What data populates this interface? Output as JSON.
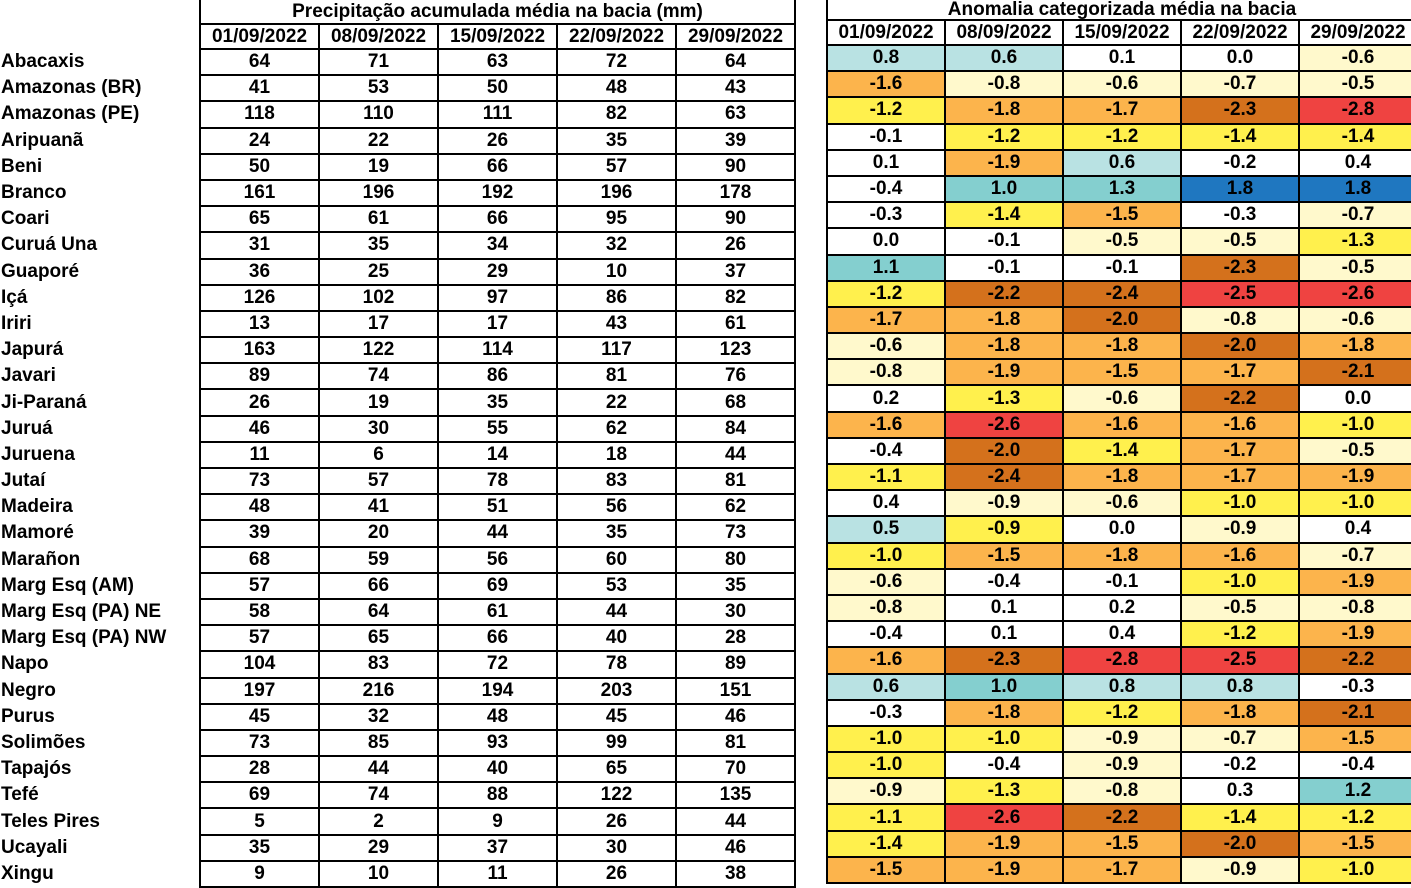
{
  "precipitation": {
    "title": "Precipitação acumulada média na bacia (mm)",
    "dates": [
      "01/09/2022",
      "08/09/2022",
      "15/09/2022",
      "22/09/2022",
      "29/09/2022"
    ]
  },
  "anomaly": {
    "title": "Anomalia categorizada média na bacia",
    "dates": [
      "01/09/2022",
      "08/09/2022",
      "15/09/2022",
      "22/09/2022",
      "29/09/2022"
    ]
  },
  "colors": {
    "B1": "#b9e2e3",
    "B2": "#84cfcf",
    "B3": "#1f77c0",
    "W": "#ffffff",
    "Y0": "#fff9cc",
    "Y1": "#fff04d",
    "O1": "#fcb44c",
    "O2": "#d4711c",
    "R": "#ef4341"
  },
  "rows": [
    {
      "name": "Abacaxis",
      "precip": [
        "64",
        "71",
        "63",
        "72",
        "64"
      ],
      "anom": [
        "0.8",
        "0.6",
        "0.1",
        "0.0",
        "-0.6"
      ],
      "cat": [
        "B1",
        "B1",
        "W",
        "W",
        "Y0"
      ]
    },
    {
      "name": "Amazonas (BR)",
      "precip": [
        "41",
        "53",
        "50",
        "48",
        "43"
      ],
      "anom": [
        "-1.6",
        "-0.8",
        "-0.6",
        "-0.7",
        "-0.5"
      ],
      "cat": [
        "O1",
        "Y0",
        "Y0",
        "Y0",
        "Y0"
      ]
    },
    {
      "name": "Amazonas (PE)",
      "precip": [
        "118",
        "110",
        "111",
        "82",
        "63"
      ],
      "anom": [
        "-1.2",
        "-1.8",
        "-1.7",
        "-2.3",
        "-2.8"
      ],
      "cat": [
        "Y1",
        "O1",
        "O1",
        "O2",
        "R"
      ]
    },
    {
      "name": "Aripuanã",
      "precip": [
        "24",
        "22",
        "26",
        "35",
        "39"
      ],
      "anom": [
        "-0.1",
        "-1.2",
        "-1.2",
        "-1.4",
        "-1.4"
      ],
      "cat": [
        "W",
        "Y1",
        "Y1",
        "Y1",
        "Y1"
      ]
    },
    {
      "name": "Beni",
      "precip": [
        "50",
        "19",
        "66",
        "57",
        "90"
      ],
      "anom": [
        "0.1",
        "-1.9",
        "0.6",
        "-0.2",
        "0.4"
      ],
      "cat": [
        "W",
        "O1",
        "B1",
        "W",
        "W"
      ]
    },
    {
      "name": "Branco",
      "precip": [
        "161",
        "196",
        "192",
        "196",
        "178"
      ],
      "anom": [
        "-0.4",
        "1.0",
        "1.3",
        "1.8",
        "1.8"
      ],
      "cat": [
        "W",
        "B2",
        "B2",
        "B3",
        "B3"
      ]
    },
    {
      "name": "Coari",
      "precip": [
        "65",
        "61",
        "66",
        "95",
        "90"
      ],
      "anom": [
        "-0.3",
        "-1.4",
        "-1.5",
        "-0.3",
        "-0.7"
      ],
      "cat": [
        "W",
        "Y1",
        "O1",
        "W",
        "Y0"
      ]
    },
    {
      "name": "Curuá Una",
      "precip": [
        "31",
        "35",
        "34",
        "32",
        "26"
      ],
      "anom": [
        "0.0",
        "-0.1",
        "-0.5",
        "-0.5",
        "-1.3"
      ],
      "cat": [
        "W",
        "W",
        "Y0",
        "Y0",
        "Y1"
      ]
    },
    {
      "name": "Guaporé",
      "precip": [
        "36",
        "25",
        "29",
        "10",
        "37"
      ],
      "anom": [
        "1.1",
        "-0.1",
        "-0.1",
        "-2.3",
        "-0.5"
      ],
      "cat": [
        "B2",
        "W",
        "W",
        "O2",
        "Y0"
      ]
    },
    {
      "name": "Içá",
      "precip": [
        "126",
        "102",
        "97",
        "86",
        "82"
      ],
      "anom": [
        "-1.2",
        "-2.2",
        "-2.4",
        "-2.5",
        "-2.6"
      ],
      "cat": [
        "Y1",
        "O2",
        "O2",
        "R",
        "R"
      ]
    },
    {
      "name": "Iriri",
      "precip": [
        "13",
        "17",
        "17",
        "43",
        "61"
      ],
      "anom": [
        "-1.7",
        "-1.8",
        "-2.0",
        "-0.8",
        "-0.6"
      ],
      "cat": [
        "O1",
        "O1",
        "O2",
        "Y0",
        "Y0"
      ]
    },
    {
      "name": "Japurá",
      "precip": [
        "163",
        "122",
        "114",
        "117",
        "123"
      ],
      "anom": [
        "-0.6",
        "-1.8",
        "-1.8",
        "-2.0",
        "-1.8"
      ],
      "cat": [
        "Y0",
        "O1",
        "O1",
        "O2",
        "O1"
      ]
    },
    {
      "name": "Javari",
      "precip": [
        "89",
        "74",
        "86",
        "81",
        "76"
      ],
      "anom": [
        "-0.8",
        "-1.9",
        "-1.5",
        "-1.7",
        "-2.1"
      ],
      "cat": [
        "Y0",
        "O1",
        "O1",
        "O1",
        "O2"
      ]
    },
    {
      "name": "Ji-Paraná",
      "precip": [
        "26",
        "19",
        "35",
        "22",
        "68"
      ],
      "anom": [
        "0.2",
        "-1.3",
        "-0.6",
        "-2.2",
        "0.0"
      ],
      "cat": [
        "W",
        "Y1",
        "Y0",
        "O2",
        "W"
      ]
    },
    {
      "name": "Juruá",
      "precip": [
        "46",
        "30",
        "55",
        "62",
        "84"
      ],
      "anom": [
        "-1.6",
        "-2.6",
        "-1.6",
        "-1.6",
        "-1.0"
      ],
      "cat": [
        "O1",
        "R",
        "O1",
        "O1",
        "Y1"
      ]
    },
    {
      "name": "Juruena",
      "precip": [
        "11",
        "6",
        "14",
        "18",
        "44"
      ],
      "anom": [
        "-0.4",
        "-2.0",
        "-1.4",
        "-1.7",
        "-0.5"
      ],
      "cat": [
        "W",
        "O2",
        "Y1",
        "O1",
        "Y0"
      ]
    },
    {
      "name": "Jutaí",
      "precip": [
        "73",
        "57",
        "78",
        "83",
        "81"
      ],
      "anom": [
        "-1.1",
        "-2.4",
        "-1.8",
        "-1.7",
        "-1.9"
      ],
      "cat": [
        "Y1",
        "O2",
        "O1",
        "O1",
        "O1"
      ]
    },
    {
      "name": "Madeira",
      "precip": [
        "48",
        "41",
        "51",
        "56",
        "62"
      ],
      "anom": [
        "0.4",
        "-0.9",
        "-0.6",
        "-1.0",
        "-1.0"
      ],
      "cat": [
        "W",
        "Y0",
        "Y0",
        "Y1",
        "Y1"
      ]
    },
    {
      "name": "Mamoré",
      "precip": [
        "39",
        "20",
        "44",
        "35",
        "73"
      ],
      "anom": [
        "0.5",
        "-0.9",
        "0.0",
        "-0.9",
        "0.4"
      ],
      "cat": [
        "B1",
        "Y1",
        "W",
        "Y0",
        "W"
      ]
    },
    {
      "name": "Marañon",
      "precip": [
        "68",
        "59",
        "56",
        "60",
        "80"
      ],
      "anom": [
        "-1.0",
        "-1.5",
        "-1.8",
        "-1.6",
        "-0.7"
      ],
      "cat": [
        "Y1",
        "O1",
        "O1",
        "O1",
        "Y0"
      ]
    },
    {
      "name": "Marg Esq (AM)",
      "precip": [
        "57",
        "66",
        "69",
        "53",
        "35"
      ],
      "anom": [
        "-0.6",
        "-0.4",
        "-0.1",
        "-1.0",
        "-1.9"
      ],
      "cat": [
        "Y0",
        "W",
        "W",
        "Y1",
        "O1"
      ]
    },
    {
      "name": "Marg Esq (PA) NE",
      "precip": [
        "58",
        "64",
        "61",
        "44",
        "30"
      ],
      "anom": [
        "-0.8",
        "0.1",
        "0.2",
        "-0.5",
        "-0.8"
      ],
      "cat": [
        "Y0",
        "W",
        "W",
        "Y0",
        "Y0"
      ]
    },
    {
      "name": "Marg Esq (PA) NW",
      "precip": [
        "57",
        "65",
        "66",
        "40",
        "28"
      ],
      "anom": [
        "-0.4",
        "0.1",
        "0.4",
        "-1.2",
        "-1.9"
      ],
      "cat": [
        "W",
        "W",
        "W",
        "Y1",
        "O1"
      ]
    },
    {
      "name": "Napo",
      "precip": [
        "104",
        "83",
        "72",
        "78",
        "89"
      ],
      "anom": [
        "-1.6",
        "-2.3",
        "-2.8",
        "-2.5",
        "-2.2"
      ],
      "cat": [
        "O1",
        "O2",
        "R",
        "R",
        "O2"
      ]
    },
    {
      "name": "Negro",
      "precip": [
        "197",
        "216",
        "194",
        "203",
        "151"
      ],
      "anom": [
        "0.6",
        "1.0",
        "0.8",
        "0.8",
        "-0.3"
      ],
      "cat": [
        "B1",
        "B2",
        "B1",
        "B1",
        "W"
      ]
    },
    {
      "name": "Purus",
      "precip": [
        "45",
        "32",
        "48",
        "45",
        "46"
      ],
      "anom": [
        "-0.3",
        "-1.8",
        "-1.2",
        "-1.8",
        "-2.1"
      ],
      "cat": [
        "W",
        "O1",
        "Y1",
        "O1",
        "O2"
      ]
    },
    {
      "name": "Solimões",
      "precip": [
        "73",
        "85",
        "93",
        "99",
        "81"
      ],
      "anom": [
        "-1.0",
        "-1.0",
        "-0.9",
        "-0.7",
        "-1.5"
      ],
      "cat": [
        "Y1",
        "Y1",
        "Y0",
        "Y0",
        "O1"
      ]
    },
    {
      "name": "Tapajós",
      "precip": [
        "28",
        "44",
        "40",
        "65",
        "70"
      ],
      "anom": [
        "-1.0",
        "-0.4",
        "-0.9",
        "-0.2",
        "-0.4"
      ],
      "cat": [
        "Y1",
        "W",
        "Y0",
        "W",
        "W"
      ]
    },
    {
      "name": "Tefé",
      "precip": [
        "69",
        "74",
        "88",
        "122",
        "135"
      ],
      "anom": [
        "-0.9",
        "-1.3",
        "-0.8",
        "0.3",
        "1.2"
      ],
      "cat": [
        "Y0",
        "Y1",
        "Y0",
        "W",
        "B2"
      ]
    },
    {
      "name": "Teles Pires",
      "precip": [
        "5",
        "2",
        "9",
        "26",
        "44"
      ],
      "anom": [
        "-1.1",
        "-2.6",
        "-2.2",
        "-1.4",
        "-1.2"
      ],
      "cat": [
        "Y1",
        "R",
        "O2",
        "Y1",
        "Y1"
      ]
    },
    {
      "name": "Ucayali",
      "precip": [
        "35",
        "29",
        "37",
        "30",
        "46"
      ],
      "anom": [
        "-1.4",
        "-1.9",
        "-1.5",
        "-2.0",
        "-1.5"
      ],
      "cat": [
        "Y1",
        "O1",
        "O1",
        "O2",
        "O1"
      ]
    },
    {
      "name": "Xingu",
      "precip": [
        "9",
        "10",
        "11",
        "26",
        "38"
      ],
      "anom": [
        "-1.5",
        "-1.9",
        "-1.7",
        "-0.9",
        "-1.0"
      ],
      "cat": [
        "O1",
        "O1",
        "O1",
        "Y0",
        "Y1"
      ]
    }
  ]
}
